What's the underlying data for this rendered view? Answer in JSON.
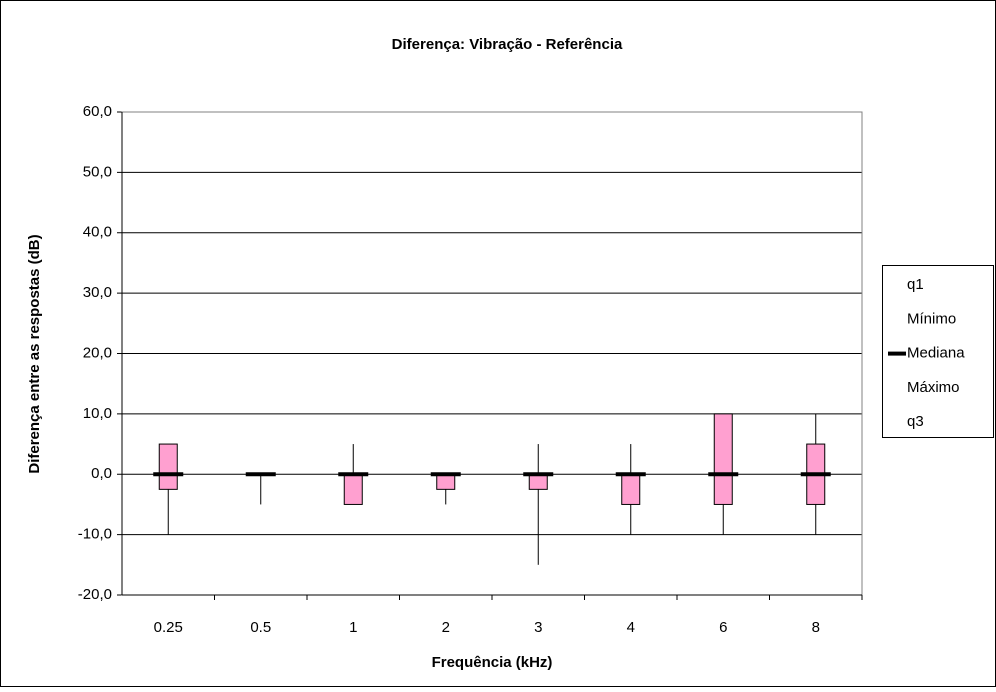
{
  "chart_data": {
    "type": "box",
    "title": "Diferença: Vibração - Referência",
    "x_label": "Frequência (kHz)",
    "y_label": "Diferença entre as respostas (dB)",
    "categories": [
      "0.25",
      "0.5",
      "1",
      "2",
      "3",
      "4",
      "6",
      "8"
    ],
    "series": [
      {
        "name": "q1",
        "values": [
          -2.5,
          0,
          -5,
          -2.5,
          -2.5,
          -5,
          -5,
          -5
        ]
      },
      {
        "name": "Mínimo",
        "values": [
          -10,
          -5,
          -5,
          -5,
          -15,
          -10,
          -10,
          -10
        ]
      },
      {
        "name": "Mediana",
        "color": "#000000",
        "values": [
          0,
          0,
          0,
          0,
          0,
          0,
          0,
          0
        ]
      },
      {
        "name": "Máximo",
        "values": [
          5,
          0,
          5,
          0,
          5,
          5,
          10,
          10
        ]
      },
      {
        "name": "q3",
        "values": [
          5,
          0,
          0,
          0,
          0,
          0,
          10,
          5
        ]
      }
    ],
    "box_color": "#ffa0d0",
    "ylim": [
      -20,
      60
    ],
    "yticks": [
      {
        "value": -20,
        "label": "-20,0"
      },
      {
        "value": -10,
        "label": "-10,0"
      },
      {
        "value": 0,
        "label": "0,0"
      },
      {
        "value": 10,
        "label": "10,0"
      },
      {
        "value": 20,
        "label": "20,0"
      },
      {
        "value": 30,
        "label": "30,0"
      },
      {
        "value": 40,
        "label": "40,0"
      },
      {
        "value": 50,
        "label": "50,0"
      },
      {
        "value": 60,
        "label": "60,0"
      }
    ],
    "grid": true,
    "legend": "right"
  }
}
